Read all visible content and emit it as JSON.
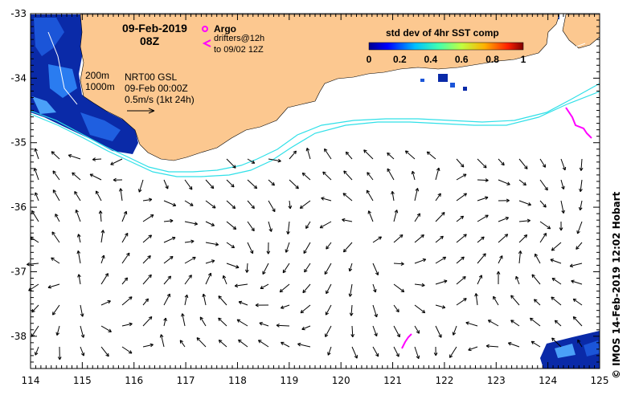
{
  "title": {
    "date": "09-Feb-2019",
    "time": "08Z"
  },
  "argo_legend": {
    "argo_label": "Argo",
    "drifters_line1": "drifters@12h",
    "drifters_line2": "to 09/02 12Z"
  },
  "isobaths": {
    "label_200": "200m",
    "label_1000": "1000m"
  },
  "currents_legend": {
    "line1": "NRT00 GSL",
    "line2": "09-Feb 00:00Z",
    "line3": "0.5m/s (1kt 24h)"
  },
  "colorbar": {
    "title": "std dev of 4hr SST comp",
    "ticks": [
      "0",
      "0.2",
      "0.4",
      "0.6",
      "0.8",
      "1"
    ],
    "range": [
      0,
      1
    ]
  },
  "axes": {
    "x_ticks": [
      "114",
      "115",
      "116",
      "117",
      "118",
      "119",
      "120",
      "121",
      "122",
      "123",
      "124",
      "125"
    ],
    "y_ticks": [
      "-33",
      "-34",
      "-35",
      "-36",
      "-37",
      "-38"
    ],
    "lon_range": [
      114,
      125
    ],
    "lat_range": [
      -38.5,
      -33
    ]
  },
  "credit": "© IMOS 14-Feb-2019 12:02 Hobart",
  "colors": {
    "land": "#fcc890",
    "isobath": "#30e0e8",
    "drifter": "#ff00ff",
    "sst_dark": "#0a2aa8",
    "sst_light": "#2a7cf0"
  }
}
